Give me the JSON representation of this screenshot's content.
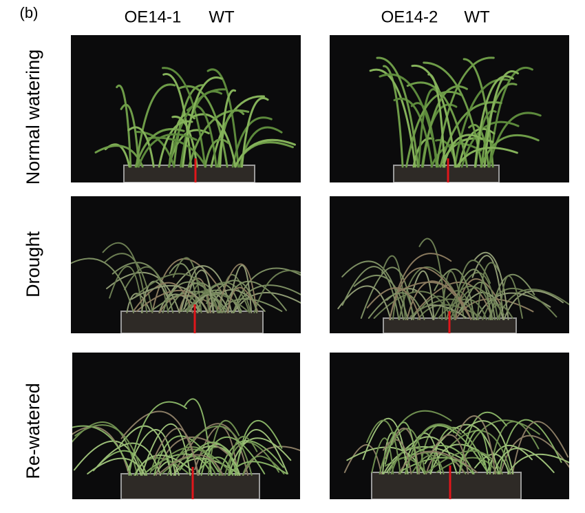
{
  "panel_label": "(b)",
  "column_labels": [
    "OE14-1",
    "WT",
    "OE14-2",
    "WT"
  ],
  "row_labels": [
    "Normal watering",
    "Drought",
    "Re-watered"
  ]
}
